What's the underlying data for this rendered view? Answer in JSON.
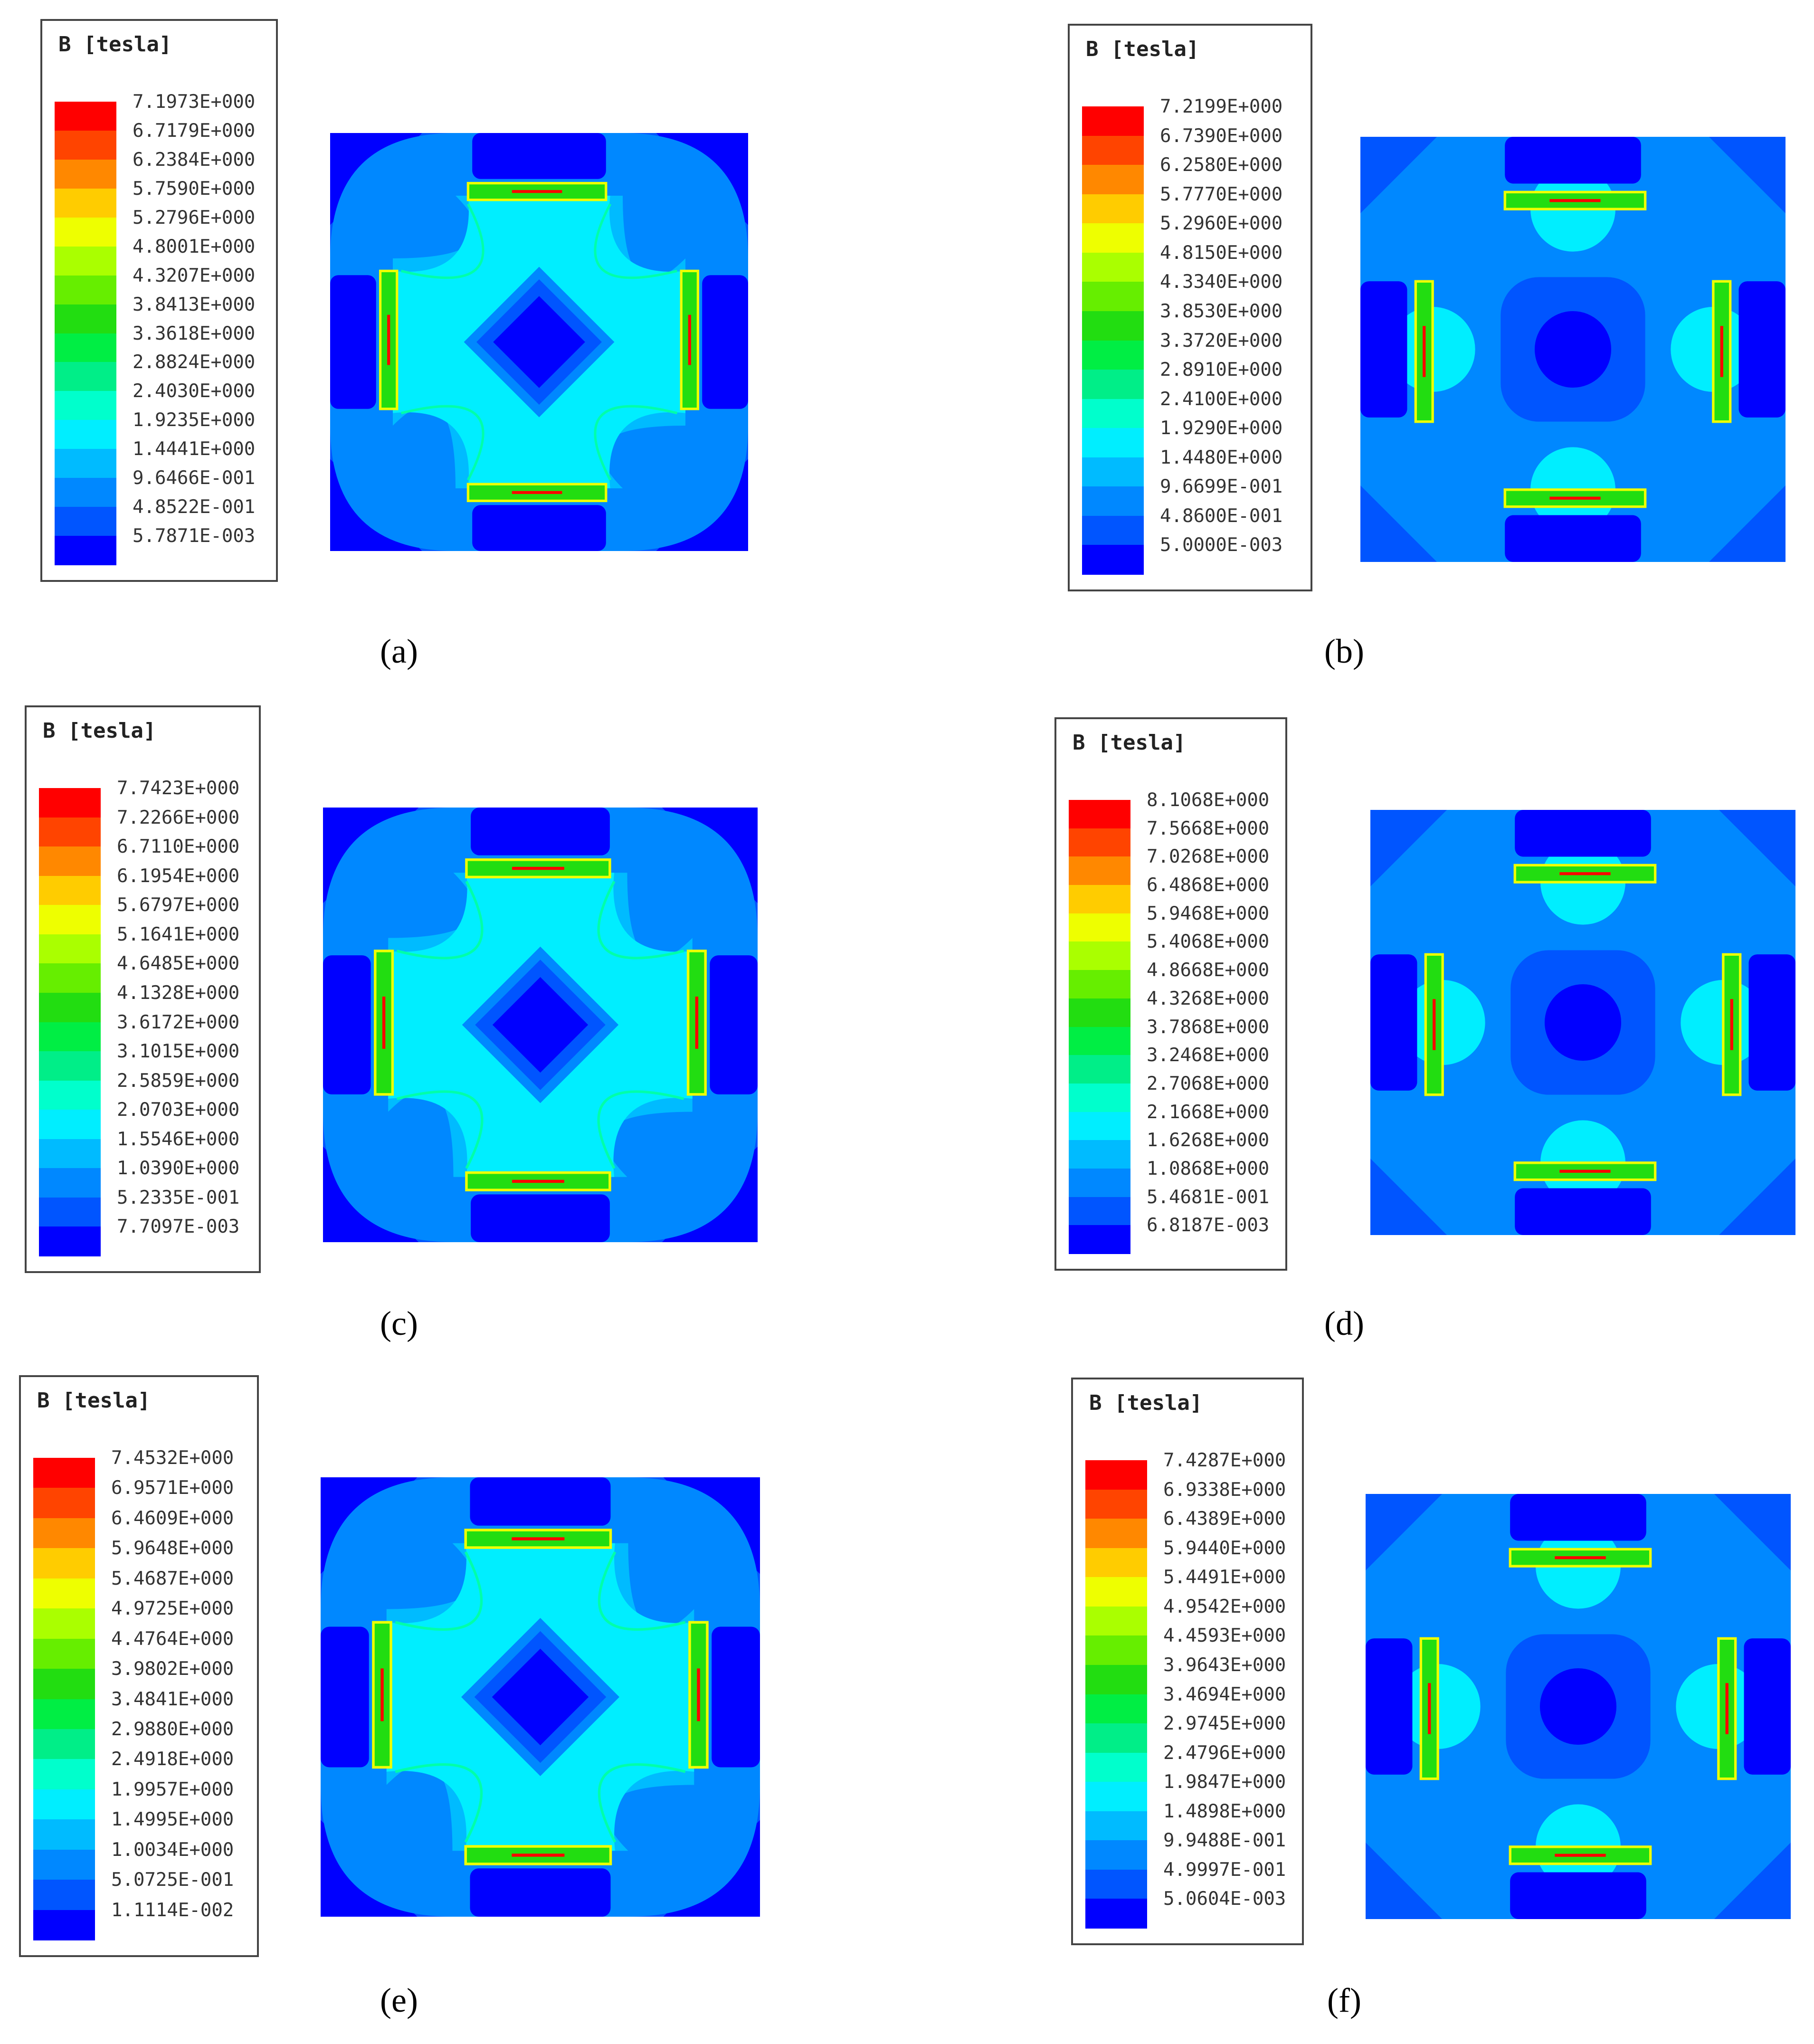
{
  "colors": [
    "#ff0000",
    "#ff4400",
    "#ff8800",
    "#ffcc00",
    "#eeff00",
    "#aaff00",
    "#66ee00",
    "#22dd11",
    "#00ee44",
    "#00ee88",
    "#00ffcc",
    "#00eeff",
    "#00bbff",
    "#0088ff",
    "#0055ff",
    "#0000ff"
  ],
  "map_colors": {
    "deep": "#0000ff",
    "dark": "#0055ff",
    "mid": "#0088ff",
    "light": "#00bbff",
    "cyan": "#00eeff",
    "green": "#22dd11",
    "yellow": "#eeff00",
    "red": "#ff0000"
  },
  "chart_data": [
    {
      "type": "heatmap",
      "pattern": "diamond",
      "label": "(a)",
      "legend_title": "B [tesla]",
      "legend_values": [
        "7.1973E+000",
        "6.7179E+000",
        "6.2384E+000",
        "5.7590E+000",
        "5.2796E+000",
        "4.8001E+000",
        "4.3207E+000",
        "3.8413E+000",
        "3.3618E+000",
        "2.8824E+000",
        "2.4030E+000",
        "1.9235E+000",
        "1.4441E+000",
        "9.6466E-001",
        "4.8522E-001",
        "5.7871E-003"
      ]
    },
    {
      "type": "heatmap",
      "pattern": "circle",
      "label": "(b)",
      "legend_title": "B [tesla]",
      "legend_values": [
        "7.2199E+000",
        "6.7390E+000",
        "6.2580E+000",
        "5.7770E+000",
        "5.2960E+000",
        "4.8150E+000",
        "4.3340E+000",
        "3.8530E+000",
        "3.3720E+000",
        "2.8910E+000",
        "2.4100E+000",
        "1.9290E+000",
        "1.4480E+000",
        "9.6699E-001",
        "4.8600E-001",
        "5.0000E-003"
      ]
    },
    {
      "type": "heatmap",
      "pattern": "diamond",
      "label": "(c)",
      "legend_title": "B [tesla]",
      "legend_values": [
        "7.7423E+000",
        "7.2266E+000",
        "6.7110E+000",
        "6.1954E+000",
        "5.6797E+000",
        "5.1641E+000",
        "4.6485E+000",
        "4.1328E+000",
        "3.6172E+000",
        "3.1015E+000",
        "2.5859E+000",
        "2.0703E+000",
        "1.5546E+000",
        "1.0390E+000",
        "5.2335E-001",
        "7.7097E-003"
      ]
    },
    {
      "type": "heatmap",
      "pattern": "circle",
      "label": "(d)",
      "legend_title": "B [tesla]",
      "legend_values": [
        "8.1068E+000",
        "7.5668E+000",
        "7.0268E+000",
        "6.4868E+000",
        "5.9468E+000",
        "5.4068E+000",
        "4.8668E+000",
        "4.3268E+000",
        "3.7868E+000",
        "3.2468E+000",
        "2.7068E+000",
        "2.1668E+000",
        "1.6268E+000",
        "1.0868E+000",
        "5.4681E-001",
        "6.8187E-003"
      ]
    },
    {
      "type": "heatmap",
      "pattern": "diamond",
      "label": "(e)",
      "legend_title": "B [tesla]",
      "legend_values": [
        "7.4532E+000",
        "6.9571E+000",
        "6.4609E+000",
        "5.9648E+000",
        "5.4687E+000",
        "4.9725E+000",
        "4.4764E+000",
        "3.9802E+000",
        "3.4841E+000",
        "2.9880E+000",
        "2.4918E+000",
        "1.9957E+000",
        "1.4995E+000",
        "1.0034E+000",
        "5.0725E-001",
        "1.1114E-002"
      ]
    },
    {
      "type": "heatmap",
      "pattern": "circle",
      "label": "(f)",
      "legend_title": "B [tesla]",
      "legend_values": [
        "7.4287E+000",
        "6.9338E+000",
        "6.4389E+000",
        "5.9440E+000",
        "5.4491E+000",
        "4.9542E+000",
        "4.4593E+000",
        "3.9643E+000",
        "3.4694E+000",
        "2.9745E+000",
        "2.4796E+000",
        "1.9847E+000",
        "1.4898E+000",
        "9.9488E-001",
        "4.9997E-001",
        "5.0604E-003"
      ]
    }
  ]
}
